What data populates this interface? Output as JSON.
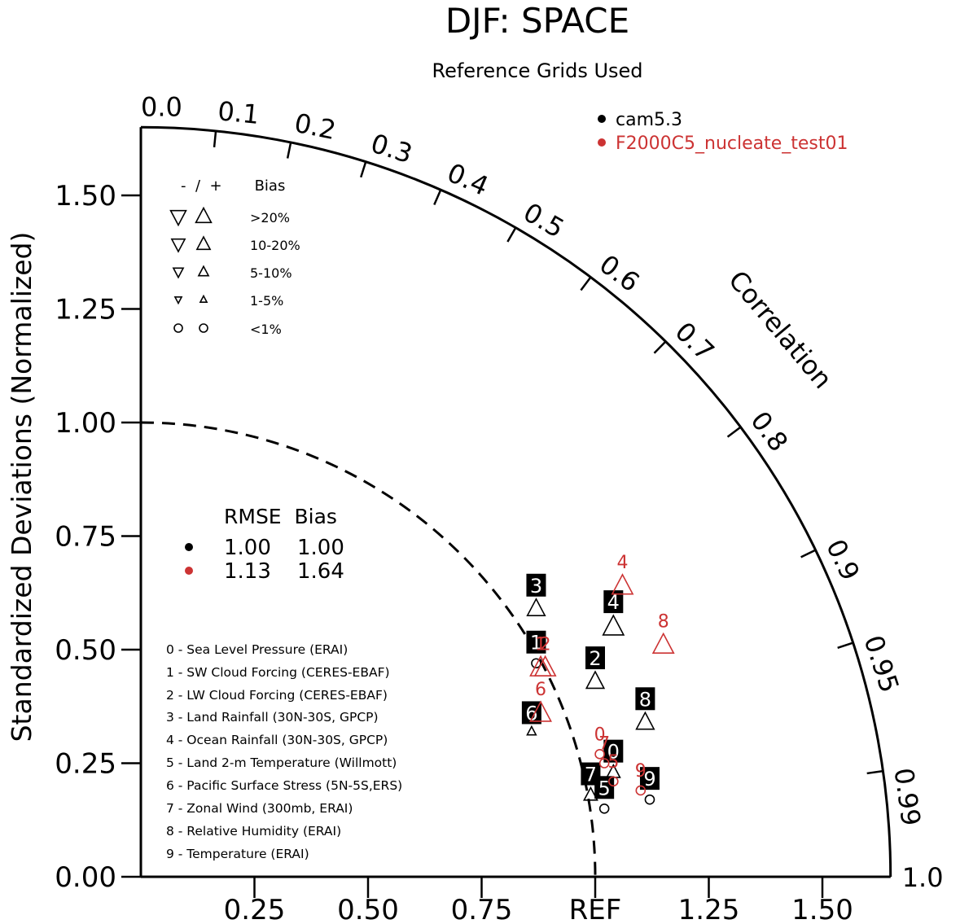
{
  "title": "DJF: SPACE",
  "subtitle": "Reference Grids Used",
  "colors": {
    "cam": "#000000",
    "test": "#cc3333"
  },
  "cases": [
    {
      "name": "cam5.3",
      "color": "#000000"
    },
    {
      "name": "F2000C5_nucleate_test01",
      "color": "#cc3333"
    }
  ],
  "bias_legend": {
    "header": "-  /  +       Bias",
    "rows": [
      {
        "label": ">20%"
      },
      {
        "label": "10-20%"
      },
      {
        "label": "5-10%"
      },
      {
        "label": "1-5%"
      },
      {
        "label": "<1%"
      }
    ]
  },
  "rmse_table": {
    "header": "RMSE  Bias",
    "rows": [
      {
        "rmse": "1.00",
        "bias": "1.00",
        "color": "#000000"
      },
      {
        "rmse": "1.13",
        "bias": "1.64",
        "color": "#cc3333"
      }
    ]
  },
  "variables": [
    "0 - Sea Level Pressure (ERAI)",
    "1 - SW Cloud Forcing (CERES-EBAF)",
    "2 - LW Cloud Forcing (CERES-EBAF)",
    "3 - Land Rainfall (30N-30S, GPCP)",
    "4 - Ocean Rainfall (30N-30S, GPCP)",
    "5 - Land 2-m Temperature (Willmott)",
    "6 - Pacific Surface Stress (5N-5S,ERS)",
    "7 - Zonal Wind (300mb, ERAI)",
    "8 - Relative Humidity (ERAI)",
    "9 - Temperature (ERAI)"
  ],
  "chart_data": {
    "type": "scatter",
    "title": "DJF: SPACE",
    "subtitle": "Reference Grids Used",
    "ylabel": "Standardized Deviations (Normalized)",
    "correlation_label": "Correlation",
    "ref_label": "REF",
    "max_std": 1.65,
    "ref_arc": 1.0,
    "x_ticks": [
      "0.25",
      "0.50",
      "0.75",
      "REF",
      "1.25",
      "1.50"
    ],
    "y_ticks": [
      "0.00",
      "0.25",
      "0.50",
      "0.75",
      "1.00",
      "1.25",
      "1.50"
    ],
    "correlation_ticks": [
      "0.0",
      "0.1",
      "0.2",
      "0.3",
      "0.4",
      "0.5",
      "0.6",
      "0.7",
      "0.8",
      "0.9",
      "0.95",
      "0.99",
      "1.0"
    ],
    "series": [
      {
        "name": "cam5.3",
        "color": "#000000",
        "points": [
          {
            "id": "0",
            "x": 1.04,
            "y": 0.23,
            "marker": "tri-up",
            "size": "s"
          },
          {
            "id": "1",
            "x": 0.87,
            "y": 0.47,
            "marker": "circle",
            "size": "s"
          },
          {
            "id": "2",
            "x": 1.0,
            "y": 0.43,
            "marker": "tri-up",
            "size": "m"
          },
          {
            "id": "3",
            "x": 0.87,
            "y": 0.59,
            "marker": "tri-up",
            "size": "m"
          },
          {
            "id": "4",
            "x": 1.04,
            "y": 0.55,
            "marker": "tri-up",
            "size": "l"
          },
          {
            "id": "5",
            "x": 1.02,
            "y": 0.15,
            "marker": "circle",
            "size": "s"
          },
          {
            "id": "6",
            "x": 0.86,
            "y": 0.32,
            "marker": "tri-up",
            "size": "xs"
          },
          {
            "id": "7",
            "x": 0.99,
            "y": 0.18,
            "marker": "tri-up",
            "size": "s"
          },
          {
            "id": "8",
            "x": 1.11,
            "y": 0.34,
            "marker": "tri-up",
            "size": "m"
          },
          {
            "id": "9",
            "x": 1.12,
            "y": 0.17,
            "marker": "circle",
            "size": "s"
          }
        ]
      },
      {
        "name": "F2000C5_nucleate_test01",
        "color": "#cc3333",
        "points": [
          {
            "id": "0",
            "x": 1.01,
            "y": 0.27,
            "marker": "circle",
            "size": "s"
          },
          {
            "id": "1",
            "x": 0.88,
            "y": 0.46,
            "marker": "tri-up",
            "size": "l"
          },
          {
            "id": "2",
            "x": 0.89,
            "y": 0.46,
            "marker": "tri-up",
            "size": "l"
          },
          {
            "id": "4",
            "x": 1.06,
            "y": 0.64,
            "marker": "tri-up",
            "size": "l"
          },
          {
            "id": "5",
            "x": 1.04,
            "y": 0.21,
            "marker": "circle",
            "size": "s"
          },
          {
            "id": "6",
            "x": 0.88,
            "y": 0.36,
            "marker": "tri-up",
            "size": "l"
          },
          {
            "id": "7",
            "x": 1.02,
            "y": 0.25,
            "marker": "circle",
            "size": "s"
          },
          {
            "id": "8",
            "x": 1.15,
            "y": 0.51,
            "marker": "tri-up",
            "size": "l"
          },
          {
            "id": "9",
            "x": 1.1,
            "y": 0.19,
            "marker": "circle",
            "size": "s"
          }
        ]
      }
    ]
  }
}
